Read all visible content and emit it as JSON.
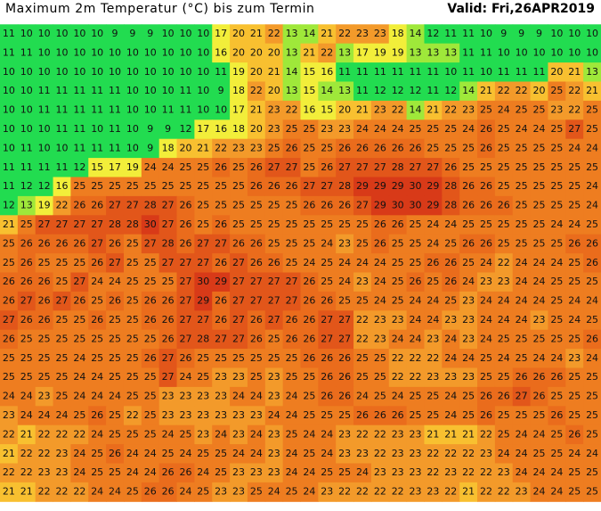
{
  "header": {
    "title": "Maximum 2m Temperatur (°C) bis zum Termin",
    "valid": "Valid: Fri,26APR2019"
  },
  "grid": {
    "rows": [
      [
        11,
        10,
        10,
        10,
        10,
        10,
        9,
        9,
        9,
        10,
        10,
        10,
        17,
        20,
        21,
        22,
        13,
        14,
        21,
        22,
        23,
        23,
        18,
        14,
        12,
        11,
        11,
        10,
        9,
        9,
        9,
        10,
        10,
        10
      ],
      [
        11,
        11,
        10,
        10,
        10,
        10,
        10,
        10,
        10,
        10,
        10,
        10,
        16,
        20,
        20,
        20,
        13,
        21,
        22,
        13,
        17,
        19,
        19,
        13,
        13,
        13,
        11,
        11,
        10,
        10,
        10,
        10,
        10,
        10
      ],
      [
        10,
        10,
        10,
        10,
        10,
        10,
        10,
        10,
        10,
        10,
        10,
        10,
        11,
        19,
        20,
        21,
        14,
        15,
        16,
        11,
        11,
        11,
        11,
        11,
        11,
        10,
        11,
        10,
        11,
        11,
        11,
        20,
        21,
        13
      ],
      [
        10,
        10,
        11,
        11,
        11,
        11,
        11,
        10,
        10,
        10,
        11,
        10,
        9,
        18,
        22,
        20,
        13,
        15,
        14,
        13,
        11,
        12,
        12,
        12,
        11,
        12,
        14,
        21,
        22,
        22,
        20,
        25,
        22,
        21
      ],
      [
        10,
        10,
        11,
        11,
        11,
        11,
        11,
        10,
        10,
        11,
        11,
        10,
        10,
        17,
        21,
        23,
        22,
        16,
        15,
        20,
        21,
        23,
        22,
        14,
        21,
        22,
        23,
        25,
        24,
        25,
        25,
        23,
        22,
        25
      ],
      [
        10,
        10,
        10,
        11,
        11,
        10,
        11,
        10,
        9,
        9,
        12,
        17,
        16,
        18,
        20,
        23,
        25,
        25,
        23,
        23,
        24,
        24,
        24,
        25,
        25,
        25,
        24,
        26,
        25,
        24,
        24,
        25,
        27,
        25
      ],
      [
        10,
        11,
        10,
        10,
        11,
        11,
        11,
        10,
        9,
        18,
        20,
        21,
        22,
        23,
        23,
        25,
        26,
        25,
        25,
        26,
        26,
        26,
        26,
        26,
        25,
        25,
        25,
        26,
        25,
        25,
        25,
        25,
        24,
        24
      ],
      [
        11,
        11,
        11,
        11,
        12,
        15,
        17,
        19,
        24,
        24,
        25,
        25,
        26,
        25,
        26,
        27,
        27,
        25,
        26,
        27,
        27,
        27,
        28,
        27,
        27,
        26,
        25,
        25,
        25,
        25,
        25,
        25,
        25,
        25
      ],
      [
        11,
        12,
        12,
        16,
        25,
        25,
        25,
        25,
        25,
        25,
        25,
        25,
        25,
        25,
        26,
        26,
        26,
        27,
        27,
        28,
        29,
        29,
        29,
        30,
        29,
        28,
        26,
        26,
        25,
        25,
        25,
        25,
        25,
        24
      ],
      [
        12,
        13,
        19,
        22,
        26,
        26,
        27,
        27,
        28,
        27,
        26,
        25,
        25,
        25,
        25,
        25,
        25,
        26,
        26,
        26,
        27,
        29,
        30,
        30,
        29,
        28,
        26,
        26,
        26,
        25,
        25,
        25,
        25,
        24
      ],
      [
        21,
        25,
        27,
        27,
        27,
        27,
        28,
        28,
        30,
        27,
        26,
        25,
        26,
        25,
        25,
        25,
        25,
        25,
        25,
        25,
        25,
        26,
        26,
        25,
        24,
        24,
        25,
        25,
        25,
        25,
        25,
        24,
        24,
        25
      ],
      [
        25,
        26,
        26,
        26,
        26,
        27,
        26,
        25,
        27,
        28,
        26,
        27,
        27,
        26,
        26,
        25,
        25,
        25,
        24,
        23,
        25,
        26,
        25,
        25,
        24,
        25,
        26,
        26,
        25,
        25,
        25,
        25,
        26,
        26
      ],
      [
        25,
        26,
        25,
        25,
        25,
        26,
        27,
        25,
        25,
        27,
        27,
        27,
        26,
        27,
        26,
        26,
        25,
        24,
        25,
        24,
        24,
        24,
        25,
        25,
        26,
        26,
        25,
        24,
        22,
        24,
        24,
        24,
        25,
        26
      ],
      [
        26,
        26,
        26,
        25,
        27,
        24,
        24,
        25,
        25,
        25,
        27,
        30,
        29,
        27,
        27,
        27,
        27,
        26,
        25,
        24,
        23,
        24,
        25,
        26,
        25,
        26,
        24,
        23,
        23,
        24,
        24,
        25,
        25,
        25
      ],
      [
        26,
        27,
        26,
        27,
        26,
        25,
        26,
        25,
        26,
        26,
        27,
        29,
        26,
        27,
        27,
        27,
        27,
        26,
        26,
        25,
        25,
        24,
        25,
        24,
        24,
        25,
        23,
        24,
        24,
        24,
        24,
        25,
        24,
        24
      ],
      [
        27,
        26,
        26,
        25,
        25,
        26,
        25,
        25,
        26,
        26,
        27,
        27,
        26,
        27,
        26,
        27,
        26,
        26,
        27,
        27,
        22,
        23,
        23,
        24,
        24,
        23,
        23,
        24,
        24,
        24,
        23,
        25,
        24,
        25
      ],
      [
        26,
        25,
        25,
        25,
        25,
        25,
        25,
        25,
        25,
        26,
        27,
        28,
        27,
        27,
        26,
        25,
        26,
        26,
        27,
        27,
        22,
        23,
        24,
        24,
        23,
        24,
        23,
        24,
        25,
        25,
        25,
        25,
        25,
        26
      ],
      [
        25,
        25,
        25,
        25,
        24,
        25,
        25,
        25,
        26,
        27,
        26,
        25,
        25,
        25,
        25,
        25,
        25,
        26,
        26,
        26,
        25,
        25,
        22,
        22,
        22,
        24,
        24,
        25,
        24,
        25,
        24,
        24,
        23,
        24
      ],
      [
        25,
        25,
        25,
        25,
        24,
        24,
        25,
        25,
        25,
        27,
        24,
        25,
        23,
        23,
        25,
        23,
        25,
        25,
        26,
        26,
        25,
        25,
        22,
        22,
        23,
        23,
        23,
        25,
        25,
        26,
        26,
        26,
        25,
        25
      ],
      [
        24,
        24,
        23,
        25,
        24,
        24,
        24,
        25,
        25,
        23,
        23,
        23,
        23,
        24,
        24,
        23,
        24,
        25,
        26,
        26,
        24,
        25,
        24,
        25,
        25,
        24,
        25,
        26,
        26,
        27,
        26,
        25,
        25,
        25
      ],
      [
        23,
        24,
        24,
        24,
        25,
        26,
        25,
        22,
        25,
        23,
        23,
        23,
        23,
        23,
        23,
        24,
        24,
        25,
        25,
        25,
        26,
        26,
        26,
        25,
        25,
        24,
        25,
        26,
        25,
        25,
        25,
        26,
        25,
        25
      ],
      [
        22,
        21,
        22,
        22,
        22,
        24,
        25,
        25,
        25,
        24,
        25,
        23,
        24,
        23,
        24,
        23,
        25,
        24,
        24,
        23,
        22,
        22,
        23,
        23,
        21,
        21,
        21,
        22,
        25,
        24,
        24,
        25,
        26,
        25
      ],
      [
        21,
        22,
        22,
        23,
        24,
        25,
        26,
        24,
        24,
        25,
        24,
        25,
        25,
        24,
        24,
        23,
        24,
        25,
        24,
        23,
        23,
        22,
        23,
        23,
        22,
        22,
        22,
        23,
        24,
        24,
        25,
        25,
        24,
        24
      ],
      [
        22,
        22,
        23,
        23,
        24,
        25,
        25,
        24,
        24,
        26,
        26,
        24,
        25,
        23,
        23,
        23,
        24,
        24,
        25,
        25,
        24,
        23,
        23,
        23,
        22,
        23,
        22,
        22,
        23,
        24,
        24,
        24,
        25,
        25
      ],
      [
        21,
        21,
        22,
        22,
        22,
        24,
        24,
        25,
        26,
        26,
        24,
        25,
        23,
        23,
        25,
        24,
        25,
        24,
        23,
        22,
        22,
        22,
        22,
        23,
        23,
        22,
        21,
        22,
        22,
        23,
        24,
        24,
        25,
        25
      ]
    ]
  }
}
